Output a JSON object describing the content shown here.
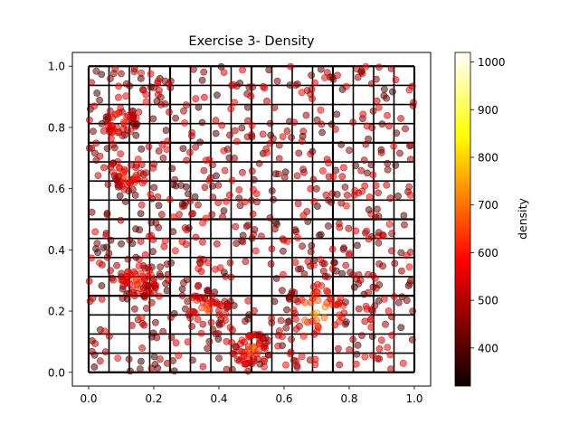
{
  "chart_data": {
    "type": "scatter",
    "title": "Exercise 3- Density",
    "xlabel": "",
    "ylabel": "",
    "xlim": [
      -0.05,
      1.05
    ],
    "ylim": [
      -0.045,
      1.045
    ],
    "x_ticks": [
      "0.0",
      "0.2",
      "0.4",
      "0.6",
      "0.8",
      "1.0"
    ],
    "y_ticks": [
      "0.0",
      "0.2",
      "0.4",
      "0.6",
      "0.8",
      "1.0"
    ],
    "x_tick_values": [
      0.0,
      0.2,
      0.4,
      0.6,
      0.8,
      1.0
    ],
    "y_tick_values": [
      0.0,
      0.2,
      0.4,
      0.6,
      0.8,
      1.0
    ],
    "grid": false,
    "colormap": "hot",
    "colorbar": {
      "label": "density",
      "min": 320,
      "max": 1020,
      "ticks": [
        "400",
        "500",
        "600",
        "700",
        "800",
        "900",
        "1000"
      ],
      "tick_values": [
        400,
        500,
        600,
        700,
        800,
        900,
        1000
      ]
    },
    "grid_lines_x": [
      0,
      0.0625,
      0.125,
      0.1875,
      0.25,
      0.3125,
      0.375,
      0.4375,
      0.5,
      0.5625,
      0.625,
      0.6875,
      0.75,
      0.8125,
      0.875,
      0.9375,
      1.0
    ],
    "grid_lines_y": [
      0,
      0.0625,
      0.125,
      0.1875,
      0.25,
      0.3125,
      0.375,
      0.4375,
      0.5,
      0.5625,
      0.625,
      0.6875,
      0.75,
      0.8125,
      0.875,
      0.9375,
      1.0
    ],
    "point_count": 1000,
    "high_density_regions": [
      {
        "x": 0.7,
        "y": 0.2,
        "radius": 0.1,
        "density": 850
      },
      {
        "x": 0.5,
        "y": 0.08,
        "radius": 0.06,
        "density": 780
      },
      {
        "x": 0.12,
        "y": 0.65,
        "radius": 0.06,
        "density": 740
      },
      {
        "x": 0.36,
        "y": 0.2,
        "radius": 0.07,
        "density": 720
      },
      {
        "x": 0.1,
        "y": 0.82,
        "radius": 0.05,
        "density": 700
      },
      {
        "x": 0.15,
        "y": 0.3,
        "radius": 0.06,
        "density": 680
      }
    ],
    "background_density": [
      380,
      600
    ]
  }
}
